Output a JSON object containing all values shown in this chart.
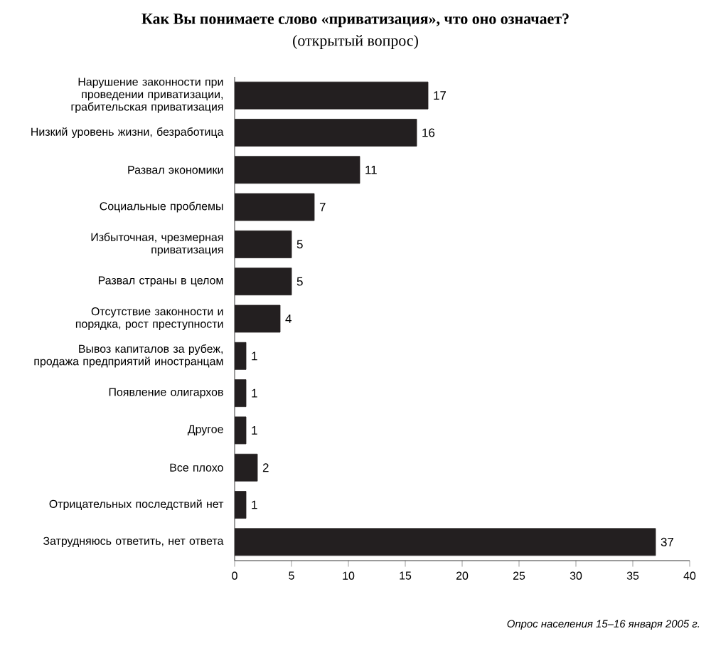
{
  "chart_data": {
    "type": "bar",
    "orientation": "horizontal",
    "title": "Как Вы понимаете слово «приватизация», что оно означает?",
    "subtitle": "(открытый вопрос)",
    "categories": [
      "Нарушение законности при проведении приватизации, грабительская приватизация",
      "Низкий уровень жизни, безработица",
      "Развал экономики",
      "Социальные проблемы",
      "Избыточная, чрезмерная приватизация",
      "Развал страны в целом",
      "Отсутствие законности и порядка, рост преступности",
      "Вывоз капиталов за рубеж, продажа предприятий иностранцам",
      "Появление олигархов",
      "Другое",
      "Все плохо",
      "Отрицательных последствий нет",
      "Затрудняюсь ответить, нет ответа"
    ],
    "values": [
      17,
      16,
      11,
      7,
      5,
      5,
      4,
      1,
      1,
      1,
      2,
      1,
      37
    ],
    "color": "#231f20",
    "xlim": [
      0,
      40
    ],
    "xticks": [
      0,
      5,
      10,
      15,
      20,
      25,
      30,
      35,
      40
    ],
    "data_labels": true,
    "grid": false,
    "annotations": [
      "Опрос населения 15–16 января 2005 г."
    ]
  }
}
